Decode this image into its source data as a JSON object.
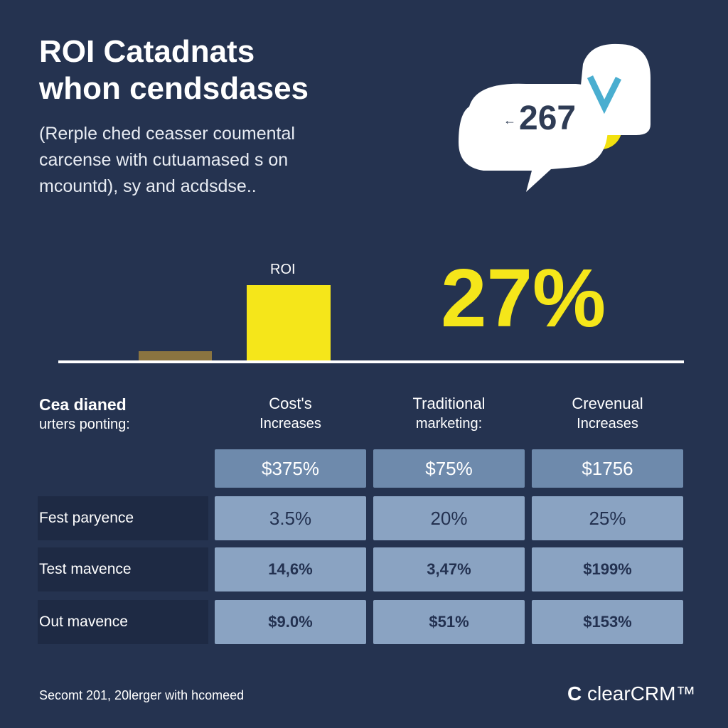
{
  "header": {
    "title": [
      "ROI Catadnats",
      "whon cendsdases"
    ],
    "subtitle": [
      "(Rerple ched ceasser coumental",
      "carcense with cutuamased s on",
      "mcountd), sy and acdsdse.."
    ]
  },
  "bubble": {
    "value": "267"
  },
  "bar_label": "ROI",
  "big_stat": "27%",
  "table": {
    "corner": [
      "Cea dianed",
      "urters ponting:"
    ],
    "columns": [
      [
        "Cost's",
        "Increases"
      ],
      [
        "Traditional",
        "marketing:"
      ],
      [
        "Crevenual",
        "Increases"
      ]
    ],
    "rows": [
      {
        "label": null,
        "cells": [
          "$375%",
          "$75%",
          "$1756"
        ]
      },
      {
        "label": "Fest paryence",
        "cells": [
          "3.5%",
          "20%",
          "25%"
        ]
      },
      {
        "label": "Test mavence",
        "cells": [
          "14,6%",
          "3,47%",
          "$199%"
        ]
      },
      {
        "label": "Out mavence",
        "cells": [
          "$9.0%",
          "$51%",
          "$153%"
        ]
      }
    ]
  },
  "footer": {
    "note": "Secomt 201, 20lerger with hcomeed",
    "brand": "clearCRM™"
  }
}
